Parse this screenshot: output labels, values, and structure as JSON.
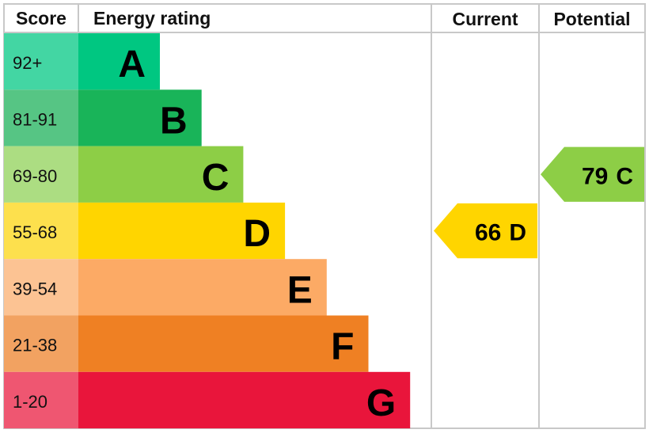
{
  "header": {
    "score": "Score",
    "rating": "Energy rating",
    "current": "Current",
    "potential": "Potential"
  },
  "bands": [
    {
      "score": "92+",
      "letter": "A",
      "color": "#00c781",
      "score_color": "#43d6a3"
    },
    {
      "score": "81-91",
      "letter": "B",
      "color": "#19b459",
      "score_color": "#56c584"
    },
    {
      "score": "69-80",
      "letter": "C",
      "color": "#8dce46",
      "score_color": "#acdd82"
    },
    {
      "score": "55-68",
      "letter": "D",
      "color": "#ffd500",
      "score_color": "#fde04d"
    },
    {
      "score": "39-54",
      "letter": "E",
      "color": "#fcaa65",
      "score_color": "#fcc393"
    },
    {
      "score": "21-38",
      "letter": "F",
      "color": "#ef8023",
      "score_color": "#f2a261"
    },
    {
      "score": "1-20",
      "letter": "G",
      "color": "#e9153b",
      "score_color": "#ef5671"
    }
  ],
  "current": {
    "score": 66,
    "letter": "D"
  },
  "potential": {
    "score": 79,
    "letter": "C"
  }
}
